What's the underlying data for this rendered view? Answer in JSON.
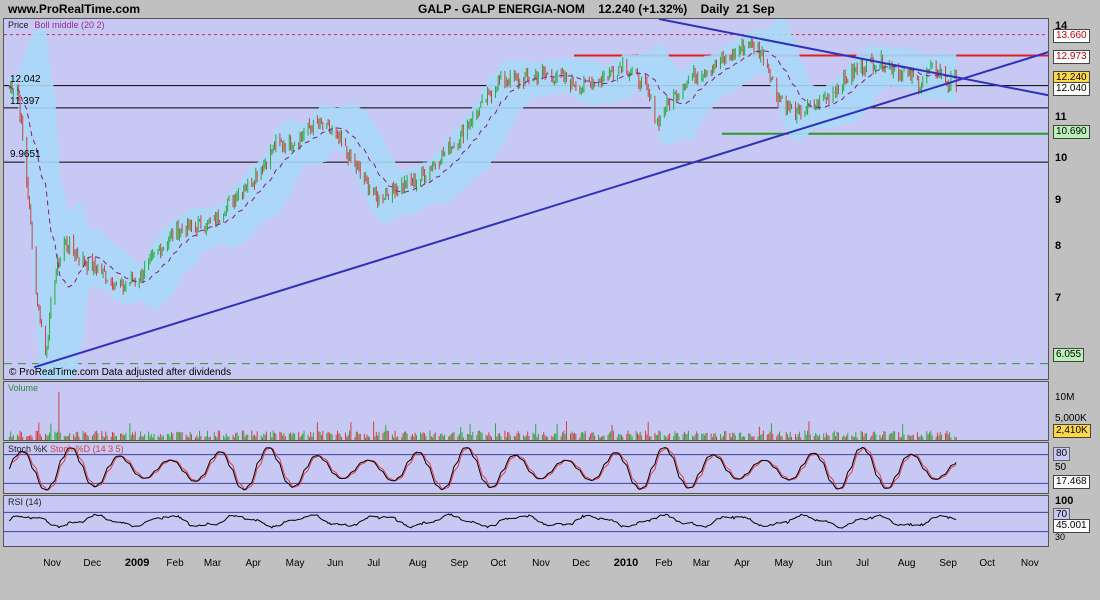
{
  "header": {
    "site": "www.ProRealTime.com",
    "title": "GALP - GALP ENERGIA-NOM    12.240 (+1.32%)    Daily  21 Sep"
  },
  "price_panel": {
    "label_price": "Price",
    "label_boll": "Boll middle (20 2)",
    "footer": "© ProRealTime.com  Data adjusted after dividends",
    "hlines": [
      {
        "value": 12.042,
        "label": "12.042"
      },
      {
        "value": 11.397,
        "label": "11.397"
      },
      {
        "value": 9.9651,
        "label": "9.9651"
      }
    ],
    "badges": [
      {
        "value": "13.660",
        "color": "#ffffff",
        "text_color": "#c00000"
      },
      {
        "value": "12.973",
        "color": "#ffffff",
        "text_color": "#c00000"
      },
      {
        "value": "12.240",
        "color": "#ffd84a",
        "text_color": "#000000"
      },
      {
        "value": "12.040",
        "color": "#ffffff",
        "text_color": "#000000"
      },
      {
        "value": "10.690",
        "color": "#b8f0b8",
        "text_color": "#000000"
      },
      {
        "value": "6.055",
        "color": "#b8f0b8",
        "text_color": "#000000"
      }
    ],
    "ticks": [
      "14",
      "12",
      "11",
      "10",
      "9",
      "8",
      "7"
    ]
  },
  "volume_panel": {
    "label": "Volume",
    "ticks": [
      "10M",
      "5,000K"
    ],
    "badge": "2,410K"
  },
  "stoch_panel": {
    "label_k": "Stoch %K",
    "label_d": "Stoch %D (14 3 5)",
    "ticks": [
      "80",
      "50"
    ],
    "badge": "17.468"
  },
  "rsi_panel": {
    "label": "RSI (14)",
    "ticks": [
      "100",
      "70",
      "30"
    ],
    "badge": "45.001"
  },
  "x_axis": {
    "months": [
      "Nov",
      "Dec",
      "2009",
      "Feb",
      "Mar",
      "Apr",
      "May",
      "Jun",
      "Jul",
      "Aug",
      "Sep",
      "Oct",
      "Nov",
      "Dec",
      "2010",
      "Feb",
      "Mar",
      "Apr",
      "May",
      "Jun",
      "Jul",
      "Aug",
      "Sep",
      "Oct",
      "Nov"
    ]
  },
  "chart_data": {
    "type": "candlestick",
    "title": "GALP - GALP ENERGIA-NOM",
    "ylim": [
      5.8,
      14.2
    ],
    "y_scale": "log",
    "series": [
      {
        "name": "Price",
        "points": [
          [
            "2008-10-20",
            12.0
          ],
          [
            "2008-10-27",
            9.5
          ],
          [
            "2008-11-03",
            7.2
          ],
          [
            "2008-11-10",
            6.2
          ],
          [
            "2008-11-17",
            7.5
          ],
          [
            "2008-11-24",
            8.2
          ],
          [
            "2008-12-08",
            7.8
          ],
          [
            "2008-12-22",
            7.6
          ],
          [
            "2009-01-05",
            7.3
          ],
          [
            "2009-01-19",
            7.5
          ],
          [
            "2009-02-02",
            8.0
          ],
          [
            "2009-02-16",
            8.4
          ],
          [
            "2009-03-02",
            8.5
          ],
          [
            "2009-03-16",
            8.6
          ],
          [
            "2009-04-01",
            9.2
          ],
          [
            "2009-04-15",
            9.6
          ],
          [
            "2009-05-01",
            10.4
          ],
          [
            "2009-05-15",
            10.5
          ],
          [
            "2009-06-01",
            11.0
          ],
          [
            "2009-06-15",
            10.6
          ],
          [
            "2009-07-01",
            9.8
          ],
          [
            "2009-07-15",
            9.1
          ],
          [
            "2009-08-01",
            9.4
          ],
          [
            "2009-08-15",
            9.5
          ],
          [
            "2009-09-01",
            10.1
          ],
          [
            "2009-09-15",
            10.6
          ],
          [
            "2009-10-01",
            11.4
          ],
          [
            "2009-10-15",
            12.2
          ],
          [
            "2009-11-01",
            12.2
          ],
          [
            "2009-11-15",
            12.4
          ],
          [
            "2009-12-01",
            12.3
          ],
          [
            "2009-12-15",
            12.0
          ],
          [
            "2010-01-01",
            12.3
          ],
          [
            "2010-01-15",
            12.7
          ],
          [
            "2010-02-01",
            12.0
          ],
          [
            "2010-02-10",
            11.0
          ],
          [
            "2010-02-20",
            11.6
          ],
          [
            "2010-03-01",
            12.1
          ],
          [
            "2010-03-15",
            12.5
          ],
          [
            "2010-04-01",
            12.8
          ],
          [
            "2010-04-20",
            13.4
          ],
          [
            "2010-05-01",
            12.9
          ],
          [
            "2010-05-10",
            11.8
          ],
          [
            "2010-05-25",
            11.2
          ],
          [
            "2010-06-10",
            11.5
          ],
          [
            "2010-06-25",
            12.0
          ],
          [
            "2010-07-10",
            12.6
          ],
          [
            "2010-07-25",
            12.8
          ],
          [
            "2010-08-10",
            12.5
          ],
          [
            "2010-08-25",
            12.1
          ],
          [
            "2010-09-05",
            12.6
          ],
          [
            "2010-09-15",
            12.1
          ],
          [
            "2010-09-21",
            12.24
          ]
        ]
      }
    ]
  }
}
